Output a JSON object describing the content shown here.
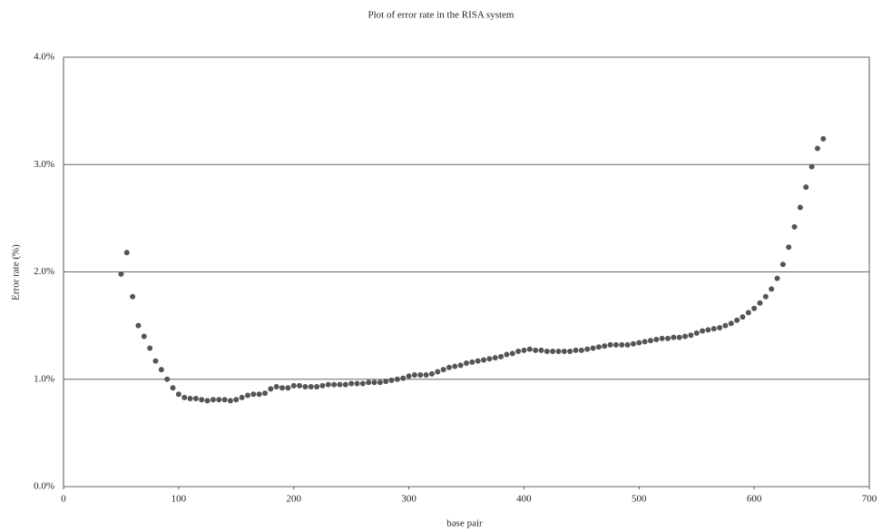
{
  "chart_data": {
    "type": "scatter",
    "title": "Plot of error rate in the RISA system",
    "x_label": "base pair",
    "y_label": "Error rate (%)",
    "color": "#555555",
    "grid": true,
    "xlim": [
      0,
      700
    ],
    "xticks": [
      0,
      100,
      200,
      300,
      400,
      500,
      600,
      700
    ],
    "ylim": [
      0,
      4
    ],
    "yticks": [
      {
        "value": 0,
        "label": "0.0%"
      },
      {
        "value": 1,
        "label": "1.0%"
      },
      {
        "value": 2,
        "label": "2.0%"
      },
      {
        "value": 3,
        "label": "3.0%"
      },
      {
        "value": 4,
        "label": "4.0%"
      }
    ],
    "x": [
      50,
      55,
      60,
      65,
      70,
      75,
      80,
      85,
      90,
      95,
      100,
      105,
      110,
      115,
      120,
      125,
      130,
      135,
      140,
      145,
      150,
      155,
      160,
      165,
      170,
      175,
      180,
      185,
      190,
      195,
      200,
      205,
      210,
      215,
      220,
      225,
      230,
      235,
      240,
      245,
      250,
      255,
      260,
      265,
      270,
      275,
      280,
      285,
      290,
      295,
      300,
      305,
      310,
      315,
      320,
      325,
      330,
      335,
      340,
      345,
      350,
      355,
      360,
      365,
      370,
      375,
      380,
      385,
      390,
      395,
      400,
      405,
      410,
      415,
      420,
      425,
      430,
      435,
      440,
      445,
      450,
      455,
      460,
      465,
      470,
      475,
      480,
      485,
      490,
      495,
      500,
      505,
      510,
      515,
      520,
      525,
      530,
      535,
      540,
      545,
      550,
      555,
      560,
      565,
      570,
      575,
      580,
      585,
      590,
      595,
      600,
      605,
      610,
      615,
      620,
      625,
      630,
      635,
      640,
      645,
      650,
      655,
      660
    ],
    "values": [
      1.98,
      2.18,
      1.77,
      1.5,
      1.4,
      1.29,
      1.17,
      1.09,
      1.0,
      0.92,
      0.86,
      0.83,
      0.82,
      0.82,
      0.81,
      0.8,
      0.81,
      0.81,
      0.81,
      0.8,
      0.81,
      0.83,
      0.85,
      0.86,
      0.86,
      0.87,
      0.91,
      0.93,
      0.92,
      0.92,
      0.94,
      0.94,
      0.93,
      0.93,
      0.93,
      0.94,
      0.95,
      0.95,
      0.95,
      0.95,
      0.96,
      0.96,
      0.96,
      0.97,
      0.97,
      0.97,
      0.98,
      0.99,
      1.0,
      1.01,
      1.03,
      1.04,
      1.04,
      1.04,
      1.05,
      1.07,
      1.09,
      1.11,
      1.12,
      1.13,
      1.15,
      1.16,
      1.17,
      1.18,
      1.19,
      1.2,
      1.21,
      1.23,
      1.24,
      1.26,
      1.27,
      1.28,
      1.27,
      1.27,
      1.26,
      1.26,
      1.26,
      1.26,
      1.26,
      1.27,
      1.27,
      1.28,
      1.29,
      1.3,
      1.31,
      1.32,
      1.32,
      1.32,
      1.32,
      1.33,
      1.34,
      1.35,
      1.36,
      1.37,
      1.38,
      1.38,
      1.39,
      1.39,
      1.4,
      1.41,
      1.43,
      1.45,
      1.46,
      1.47,
      1.48,
      1.5,
      1.52,
      1.55,
      1.58,
      1.62,
      1.66,
      1.71,
      1.77,
      1.84,
      1.94,
      2.07,
      2.23,
      2.42,
      2.6,
      2.79,
      2.98,
      3.15,
      3.24
    ]
  }
}
